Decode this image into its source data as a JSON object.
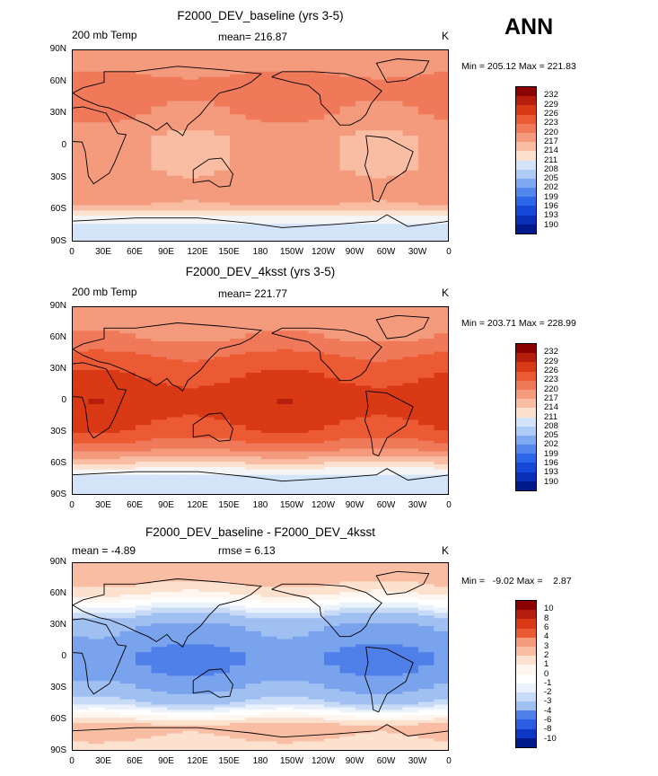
{
  "season_label": "ANN",
  "colors": {
    "abs_scale": [
      "#8b0000",
      "#b51e0d",
      "#d93915",
      "#eb5a33",
      "#f0795a",
      "#f49a7d",
      "#f9bda4",
      "#fde1cf",
      "#f5f5f5",
      "#d3e4f8",
      "#aecbf6",
      "#7ea8f0",
      "#5387ec",
      "#2c66e8",
      "#1648d7",
      "#0a2fb6",
      "#001a8c"
    ],
    "diff_scale": [
      "#8b0000",
      "#b51e0d",
      "#d93915",
      "#eb5a33",
      "#f0795a",
      "#f49a7d",
      "#f9bda4",
      "#fde1cf",
      "#fff6ef",
      "#ffffff",
      "#eaf2fd",
      "#c8dbf6",
      "#a1c0f2",
      "#7aa3ee",
      "#4f7fe8",
      "#2b5ce2",
      "#0e36c5",
      "#001a8c"
    ]
  },
  "lon_ticks": [
    "0",
    "30E",
    "60E",
    "90E",
    "120E",
    "150E",
    "180",
    "150W",
    "120W",
    "90W",
    "60W",
    "30W",
    "0"
  ],
  "lat_ticks": [
    "90N",
    "60N",
    "30N",
    "0",
    "30S",
    "60S",
    "90S"
  ],
  "chart_data": [
    {
      "type": "heatmap",
      "title": "F2000_DEV_baseline (yrs 3-5)",
      "left_subtitle": "200 mb Temp",
      "center_subtitle": "mean= 216.87",
      "units": "K",
      "min_text": "Min = 205.12 Max = 221.83",
      "min": 205.12,
      "max": 221.83,
      "mean": 216.87,
      "colorbar_labels": [
        "232",
        "229",
        "226",
        "223",
        "220",
        "217",
        "214",
        "211",
        "208",
        "205",
        "202",
        "199",
        "196",
        "193",
        "190"
      ],
      "lat_profile": [
        {
          "lat": 90,
          "value": 219
        },
        {
          "lat": 75,
          "value": 219
        },
        {
          "lat": 60,
          "value": 221
        },
        {
          "lat": 45,
          "value": 221
        },
        {
          "lat": 30,
          "value": 220
        },
        {
          "lat": 15,
          "value": 218
        },
        {
          "lat": 0,
          "value": 217
        },
        {
          "lat": -15,
          "value": 217
        },
        {
          "lat": -30,
          "value": 218
        },
        {
          "lat": -45,
          "value": 219
        },
        {
          "lat": -55,
          "value": 217
        },
        {
          "lat": -65,
          "value": 211
        },
        {
          "lat": -75,
          "value": 207
        },
        {
          "lat": -90,
          "value": 206
        }
      ]
    },
    {
      "type": "heatmap",
      "title": "F2000_DEV_4ksst (yrs 3-5)",
      "left_subtitle": "200 mb Temp",
      "center_subtitle": "mean= 221.77",
      "units": "K",
      "min_text": "Min = 203.71 Max = 228.99",
      "min": 203.71,
      "max": 228.99,
      "mean": 221.77,
      "colorbar_labels": [
        "232",
        "229",
        "226",
        "223",
        "220",
        "217",
        "214",
        "211",
        "208",
        "205",
        "202",
        "199",
        "196",
        "193",
        "190"
      ],
      "lat_profile": [
        {
          "lat": 90,
          "value": 218
        },
        {
          "lat": 75,
          "value": 219
        },
        {
          "lat": 60,
          "value": 220
        },
        {
          "lat": 45,
          "value": 223
        },
        {
          "lat": 30,
          "value": 225
        },
        {
          "lat": 15,
          "value": 227
        },
        {
          "lat": 0,
          "value": 228
        },
        {
          "lat": -15,
          "value": 227
        },
        {
          "lat": -30,
          "value": 225
        },
        {
          "lat": -45,
          "value": 221
        },
        {
          "lat": -55,
          "value": 216
        },
        {
          "lat": -65,
          "value": 210
        },
        {
          "lat": -75,
          "value": 206
        },
        {
          "lat": -90,
          "value": 205
        }
      ]
    },
    {
      "type": "heatmap",
      "title": "F2000_DEV_baseline - F2000_DEV_4ksst",
      "left_subtitle": "mean =   -4.89",
      "center_subtitle": "rmse =    6.13",
      "units": "K",
      "min_text": "Min =   -9.02 Max =    2.87",
      "min": -9.02,
      "max": 2.87,
      "mean": -4.89,
      "rmse": 6.13,
      "colorbar_labels": [
        "10",
        "8",
        "6",
        "4",
        "3",
        "2",
        "1",
        "0",
        "-1",
        "-2",
        "-3",
        "-4",
        "-6",
        "-8",
        "-10"
      ],
      "lat_profile": [
        {
          "lat": 90,
          "value": 1.5
        },
        {
          "lat": 75,
          "value": 1.5
        },
        {
          "lat": 62,
          "value": 0.2
        },
        {
          "lat": 50,
          "value": -2
        },
        {
          "lat": 40,
          "value": -4
        },
        {
          "lat": 30,
          "value": -6
        },
        {
          "lat": 15,
          "value": -7
        },
        {
          "lat": 0,
          "value": -8.5
        },
        {
          "lat": -15,
          "value": -7.5
        },
        {
          "lat": -30,
          "value": -6
        },
        {
          "lat": -45,
          "value": -3.5
        },
        {
          "lat": -55,
          "value": -1
        },
        {
          "lat": -65,
          "value": 1.5
        },
        {
          "lat": -78,
          "value": 1
        },
        {
          "lat": -90,
          "value": 0.5
        }
      ]
    }
  ]
}
